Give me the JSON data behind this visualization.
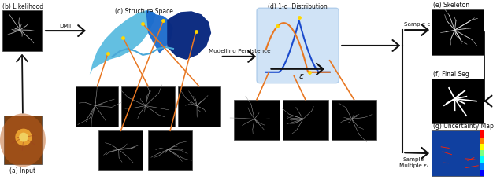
{
  "fig_width": 6.4,
  "fig_height": 2.3,
  "dpi": 100,
  "bg_color": "#ffffff",
  "labels": {
    "a": "(a) Input",
    "b": "(b) Likelihood",
    "c": "(c) Structure Space",
    "d": "(d) 1-d  Distribution",
    "e": "(e) Skeleton",
    "f": "(f) Final Seg",
    "g": "(g) Uncertainty Map",
    "dmt": "DMT",
    "modelling": "Modelling Persistence",
    "sample_e": "Sample ε",
    "sample_mult": "Sample\nMultiple εᵢ",
    "epsilon": "ε"
  },
  "orange_color": "#E87722",
  "yellow_color": "#FFD700",
  "blue_dark": "#00008B",
  "blue_light": "#5BB8F5",
  "arrow_color": "#1a1a1a",
  "box_fill": "#C8DFF5",
  "box_edge": "#A8C8E8",
  "black": "#000000",
  "white": "#ffffff",
  "text_color": "#111111",
  "font_size_label": 5.5,
  "font_size_arrow": 5.2,
  "font_size_epsilon": 8.0
}
